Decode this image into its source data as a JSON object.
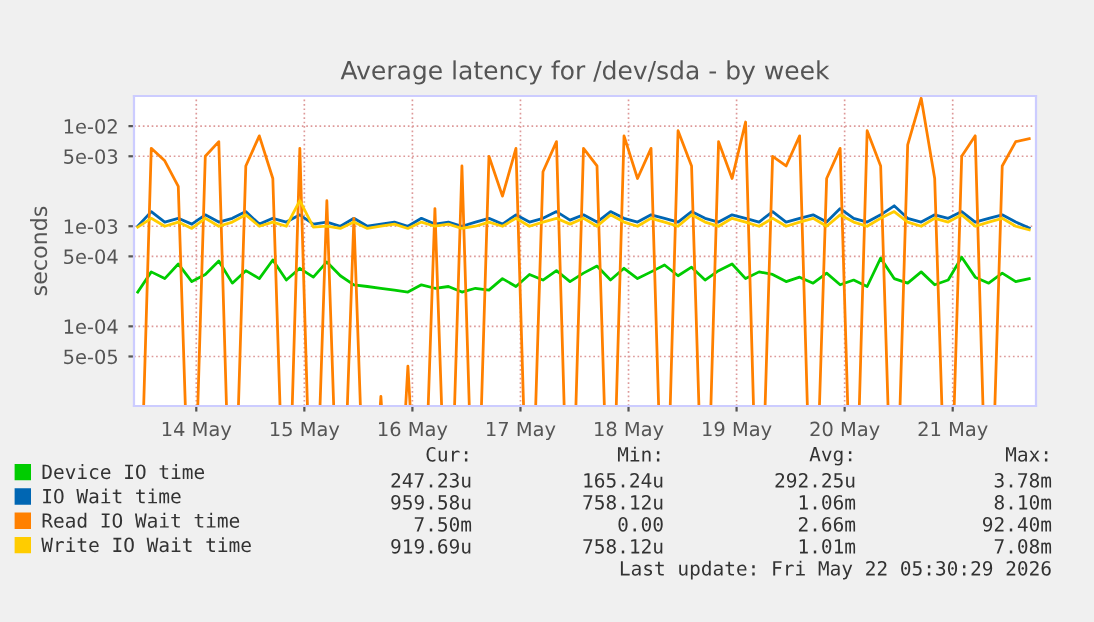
{
  "chart_data": {
    "type": "line",
    "title": "Average latency for /dev/sda - by week",
    "ylabel": "seconds",
    "x": [
      "2026-05-13T23:00",
      "2026-05-14T02:00",
      "2026-05-14T05:00",
      "2026-05-14T08:00",
      "2026-05-14T11:00",
      "2026-05-14T14:00",
      "2026-05-14T17:00",
      "2026-05-14T20:00",
      "2026-05-14T23:00",
      "2026-05-15T02:00",
      "2026-05-15T05:00",
      "2026-05-15T08:00",
      "2026-05-15T11:00",
      "2026-05-15T14:00",
      "2026-05-15T17:00",
      "2026-05-15T20:00",
      "2026-05-15T23:00",
      "2026-05-16T02:00",
      "2026-05-16T05:00",
      "2026-05-16T08:00",
      "2026-05-16T11:00",
      "2026-05-16T14:00",
      "2026-05-16T17:00",
      "2026-05-16T20:00",
      "2026-05-16T23:00",
      "2026-05-17T02:00",
      "2026-05-17T05:00",
      "2026-05-17T08:00",
      "2026-05-17T11:00",
      "2026-05-17T14:00",
      "2026-05-17T17:00",
      "2026-05-17T20:00",
      "2026-05-17T23:00",
      "2026-05-18T02:00",
      "2026-05-18T05:00",
      "2026-05-18T08:00",
      "2026-05-18T11:00",
      "2026-05-18T14:00",
      "2026-05-18T17:00",
      "2026-05-18T20:00",
      "2026-05-18T23:00",
      "2026-05-19T02:00",
      "2026-05-19T05:00",
      "2026-05-19T08:00",
      "2026-05-19T11:00",
      "2026-05-19T14:00",
      "2026-05-19T17:00",
      "2026-05-19T20:00",
      "2026-05-19T23:00",
      "2026-05-20T02:00",
      "2026-05-20T05:00",
      "2026-05-20T08:00",
      "2026-05-20T11:00",
      "2026-05-20T14:00",
      "2026-05-20T17:00",
      "2026-05-20T20:00",
      "2026-05-20T23:00",
      "2026-05-21T02:00",
      "2026-05-21T05:00",
      "2026-05-21T08:00",
      "2026-05-21T11:00",
      "2026-05-21T14:00",
      "2026-05-21T17:00",
      "2026-05-21T20:00",
      "2026-05-21T23:00",
      "2026-05-22T02:00",
      "2026-05-22T05:00"
    ],
    "series": [
      {
        "name": "Device IO time",
        "color": "#00cc00",
        "values": [
          0.00022,
          0.00035,
          0.0003,
          0.00042,
          0.00028,
          0.00033,
          0.00045,
          0.00027,
          0.00036,
          0.0003,
          0.00046,
          0.00029,
          0.00038,
          0.00031,
          0.00044,
          0.00032,
          0.00026,
          0.00025,
          0.00024,
          0.00023,
          0.00022,
          0.00026,
          0.00024,
          0.00025,
          0.00022,
          0.00024,
          0.00023,
          0.0003,
          0.00025,
          0.00033,
          0.00029,
          0.00036,
          0.00028,
          0.00034,
          0.0004,
          0.00029,
          0.00038,
          0.0003,
          0.00035,
          0.00041,
          0.00032,
          0.00039,
          0.00029,
          0.00036,
          0.00042,
          0.0003,
          0.00035,
          0.00033,
          0.00028,
          0.00031,
          0.00027,
          0.00034,
          0.00026,
          0.00029,
          0.00025,
          0.00048,
          0.0003,
          0.00027,
          0.00035,
          0.00026,
          0.00029,
          0.00049,
          0.00031,
          0.00027,
          0.00034,
          0.00028,
          0.0003
        ]
      },
      {
        "name": "IO Wait time",
        "color": "#0066b3",
        "values": [
          0.001,
          0.0014,
          0.0011,
          0.0012,
          0.00105,
          0.0013,
          0.0011,
          0.0012,
          0.0014,
          0.00105,
          0.0012,
          0.0011,
          0.0013,
          0.00105,
          0.0011,
          0.001,
          0.0012,
          0.001,
          0.00105,
          0.0011,
          0.001,
          0.0012,
          0.00105,
          0.0011,
          0.001,
          0.0011,
          0.0012,
          0.00105,
          0.0013,
          0.0011,
          0.0012,
          0.0014,
          0.00115,
          0.0013,
          0.0011,
          0.0014,
          0.0012,
          0.0011,
          0.0013,
          0.0012,
          0.0011,
          0.0014,
          0.0012,
          0.0011,
          0.0013,
          0.0012,
          0.0011,
          0.0014,
          0.0011,
          0.0012,
          0.0013,
          0.0011,
          0.0015,
          0.0012,
          0.0011,
          0.0013,
          0.0016,
          0.0012,
          0.0011,
          0.0013,
          0.0012,
          0.0014,
          0.0011,
          0.0012,
          0.0013,
          0.0011,
          0.00096
        ]
      },
      {
        "name": "Read IO Wait time",
        "color": "#ff8000",
        "values": [
          null,
          0.006,
          0.0045,
          0.0025,
          null,
          0.005,
          0.007,
          null,
          0.004,
          0.008,
          0.003,
          null,
          0.006,
          null,
          0.0018,
          null,
          0.0012,
          null,
          2e-05,
          null,
          4e-05,
          null,
          0.0015,
          null,
          0.004,
          null,
          0.005,
          0.002,
          0.006,
          null,
          0.0035,
          0.007,
          null,
          0.006,
          0.004,
          null,
          0.008,
          0.003,
          0.006,
          null,
          0.009,
          0.004,
          null,
          0.007,
          0.003,
          0.011,
          null,
          0.005,
          0.004,
          0.008,
          null,
          0.003,
          0.006,
          null,
          0.009,
          0.004,
          null,
          0.0065,
          0.019,
          0.003,
          null,
          0.005,
          0.008,
          null,
          0.004,
          0.007,
          0.0075
        ]
      },
      {
        "name": "Write IO Wait time",
        "color": "#ffcc00",
        "values": [
          0.00098,
          0.0012,
          0.001,
          0.0011,
          0.00095,
          0.0012,
          0.001,
          0.0011,
          0.0013,
          0.001,
          0.0011,
          0.001,
          0.0018,
          0.00098,
          0.001,
          0.00095,
          0.0011,
          0.00095,
          0.001,
          0.00105,
          0.00095,
          0.0011,
          0.001,
          0.00105,
          0.00095,
          0.001,
          0.0011,
          0.001,
          0.0012,
          0.001,
          0.0011,
          0.0012,
          0.00105,
          0.0012,
          0.001,
          0.0013,
          0.0011,
          0.001,
          0.0012,
          0.0011,
          0.001,
          0.0013,
          0.0011,
          0.001,
          0.0012,
          0.0011,
          0.001,
          0.0012,
          0.001,
          0.0011,
          0.0012,
          0.001,
          0.0013,
          0.0011,
          0.001,
          0.0012,
          0.0014,
          0.0011,
          0.001,
          0.0012,
          0.0011,
          0.0013,
          0.001,
          0.0011,
          0.0012,
          0.001,
          0.00092
        ]
      }
    ],
    "log": true,
    "ylim": [
      1.6e-05,
      0.02
    ],
    "yticks": [
      {
        "value": 5e-05,
        "label": "5e-05"
      },
      {
        "value": 0.0001,
        "label": "1e-04"
      },
      {
        "value": 0.0005,
        "label": "5e-04"
      },
      {
        "value": 0.001,
        "label": "1e-03"
      },
      {
        "value": 0.005,
        "label": "5e-03"
      },
      {
        "value": 0.01,
        "label": "1e-02"
      }
    ],
    "xlim": [
      "2026-05-13T22:10",
      "2026-05-22T06:30"
    ],
    "xticks": [
      {
        "value": "2026-05-14T12:00",
        "label": "14 May"
      },
      {
        "value": "2026-05-15T12:00",
        "label": "15 May"
      },
      {
        "value": "2026-05-16T12:00",
        "label": "16 May"
      },
      {
        "value": "2026-05-17T12:00",
        "label": "17 May"
      },
      {
        "value": "2026-05-18T12:00",
        "label": "18 May"
      },
      {
        "value": "2026-05-19T12:00",
        "label": "19 May"
      },
      {
        "value": "2026-05-20T12:00",
        "label": "20 May"
      },
      {
        "value": "2026-05-21T12:00",
        "label": "21 May"
      }
    ],
    "grid": true,
    "legend": "bottom",
    "marker": "none",
    "line_style": "solid",
    "annotations": [
      "Cur:",
      "Min:",
      "Avg:",
      "Max:",
      "247.23u",
      "165.24u",
      "292.25u",
      "3.78m",
      "959.58u",
      "758.12u",
      "1.06m",
      "8.10m",
      "7.50m",
      "0.00",
      "2.66m",
      "92.40m",
      "919.69u",
      "758.12u",
      "1.01m",
      "7.08m",
      "Last update: Fri May 22 05:30:29 2026"
    ]
  }
}
